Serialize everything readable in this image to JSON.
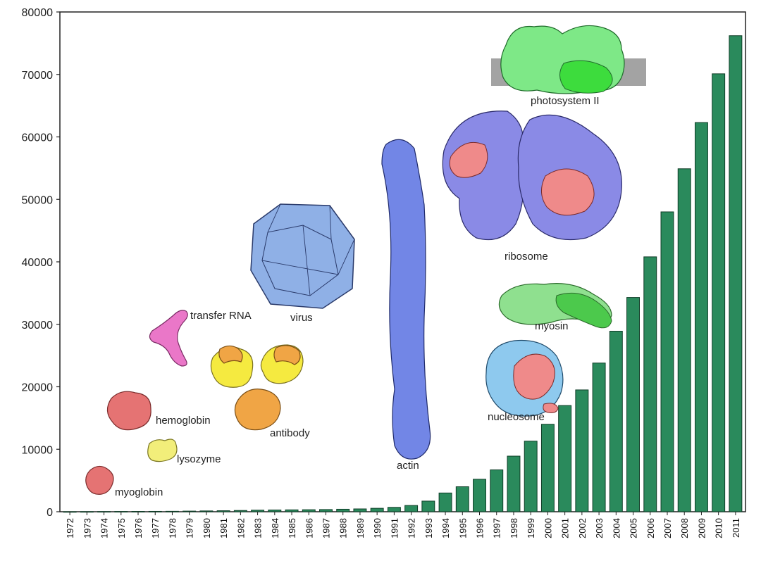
{
  "chart_data": {
    "type": "bar",
    "title": "",
    "xlabel": "",
    "ylabel": "",
    "ylim": [
      0,
      80000
    ],
    "yticks": [
      "0",
      "10000",
      "20000",
      "30000",
      "40000",
      "50000",
      "60000",
      "70000",
      "80000"
    ],
    "categories": [
      "1972",
      "1973",
      "1974",
      "1975",
      "1976",
      "1977",
      "1978",
      "1979",
      "1980",
      "1981",
      "1982",
      "1983",
      "1984",
      "1985",
      "1986",
      "1987",
      "1988",
      "1989",
      "1990",
      "1991",
      "1992",
      "1993",
      "1994",
      "1995",
      "1996",
      "1997",
      "1998",
      "1999",
      "2000",
      "2001",
      "2002",
      "2003",
      "2004",
      "2005",
      "2006",
      "2007",
      "2008",
      "2009",
      "2010",
      "2011"
    ],
    "values": [
      10,
      20,
      30,
      40,
      50,
      60,
      70,
      100,
      130,
      160,
      200,
      250,
      280,
      300,
      320,
      350,
      400,
      450,
      550,
      700,
      1000,
      1700,
      3000,
      4000,
      5200,
      6700,
      8900,
      11300,
      14000,
      17000,
      19500,
      23800,
      28900,
      34300,
      40800,
      48000,
      54900,
      62300,
      70100,
      76200
    ],
    "color": "#2a8a5c",
    "annotations": [
      {
        "label": "myoglobin",
        "color": "#e57373"
      },
      {
        "label": "lysozyme",
        "color": "#f2ee7a"
      },
      {
        "label": "hemoglobin",
        "color": "#e57373"
      },
      {
        "label": "transfer RNA",
        "color": "#ea77c8"
      },
      {
        "label": "antibody",
        "color": "#f0a545"
      },
      {
        "label": "virus",
        "color": "#8fb0e6"
      },
      {
        "label": "actin",
        "color": "#7286e6"
      },
      {
        "label": "ribosome",
        "color": "#8a8ae6"
      },
      {
        "label": "photosystem II",
        "color": "#6fe07a"
      },
      {
        "label": "myosin",
        "color": "#6fcf6f"
      },
      {
        "label": "nucleosome",
        "color": "#8ec9ee"
      }
    ]
  }
}
